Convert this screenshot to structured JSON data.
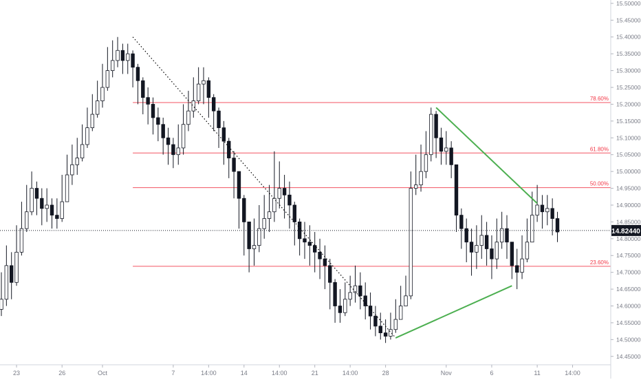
{
  "symbol_price_label": "14.82440",
  "chart_data": {
    "type": "candlestick",
    "ylim": [
      14.425,
      15.51
    ],
    "y_tick_labels": [
      "15.50000",
      "15.45000",
      "15.40000",
      "15.35000",
      "15.30000",
      "15.25000",
      "15.20000",
      "15.15000",
      "15.10000",
      "15.05000",
      "15.00000",
      "14.95000",
      "14.90000",
      "14.85000",
      "14.80000",
      "14.75000",
      "14.70000",
      "14.65000",
      "14.60000",
      "14.55000",
      "14.50000",
      "14.45000"
    ],
    "y_ticks": [
      15.5,
      15.45,
      15.4,
      15.35,
      15.3,
      15.25,
      15.2,
      15.15,
      15.1,
      15.05,
      15.0,
      14.95,
      14.9,
      14.85,
      14.8,
      14.75,
      14.7,
      14.65,
      14.6,
      14.55,
      14.5,
      14.45
    ],
    "x_tick_labels": [
      {
        "label": "23",
        "bar": 3
      },
      {
        "label": "26",
        "bar": 12
      },
      {
        "label": "Oct",
        "bar": 20
      },
      {
        "label": "7",
        "bar": 34
      },
      {
        "label": "14:00",
        "bar": 41
      },
      {
        "label": "14",
        "bar": 48
      },
      {
        "label": "14:00",
        "bar": 55
      },
      {
        "label": "21",
        "bar": 62
      },
      {
        "label": "14:00",
        "bar": 69
      },
      {
        "label": "28",
        "bar": 76
      },
      {
        "label": "Nov",
        "bar": 88
      },
      {
        "label": "6",
        "bar": 97
      },
      {
        "label": "11",
        "bar": 106
      },
      {
        "label": "14:00",
        "bar": 113
      }
    ],
    "last_price": 14.8244,
    "fib_levels": [
      {
        "label": "78.60%",
        "value": 15.205,
        "bar_start": 26
      },
      {
        "label": "61.80%",
        "value": 15.055,
        "bar_start": 26
      },
      {
        "label": "50.00%",
        "value": 14.952,
        "bar_start": 26
      },
      {
        "label": "23.60%",
        "value": 14.718,
        "bar_start": 26
      }
    ],
    "trendlines": [
      {
        "style": "dotted",
        "color": "#000000",
        "from": {
          "bar": 26,
          "price": 15.4
        },
        "to": {
          "bar": 78,
          "price": 14.505
        }
      },
      {
        "style": "solid",
        "color": "#4caf50",
        "from": {
          "bar": 86,
          "price": 15.19
        },
        "to": {
          "bar": 106,
          "price": 14.905
        }
      },
      {
        "style": "solid",
        "color": "#4caf50",
        "from": {
          "bar": 78,
          "price": 14.505
        },
        "to": {
          "bar": 101,
          "price": 14.66
        }
      }
    ],
    "closes": [
      14.62,
      14.72,
      14.67,
      14.76,
      14.83,
      14.88,
      14.95,
      14.92,
      14.89,
      14.9,
      14.87,
      14.86,
      14.91,
      14.99,
      15.02,
      15.04,
      15.08,
      15.13,
      15.17,
      15.21,
      15.25,
      15.3,
      15.33,
      15.36,
      15.33,
      15.35,
      15.31,
      15.27,
      15.22,
      15.2,
      15.16,
      15.14,
      15.1,
      15.08,
      15.05,
      15.07,
      15.14,
      15.18,
      15.21,
      15.26,
      15.27,
      15.22,
      15.18,
      15.13,
      15.09,
      15.04,
      15.0,
      14.92,
      14.85,
      14.77,
      14.78,
      14.83,
      14.86,
      14.88,
      14.92,
      14.95,
      14.93,
      14.9,
      14.85,
      14.8,
      14.79,
      14.78,
      14.76,
      14.74,
      14.72,
      14.67,
      14.6,
      14.58,
      14.62,
      14.64,
      14.66,
      14.63,
      14.6,
      14.57,
      14.54,
      14.52,
      14.51,
      14.53,
      14.56,
      14.6,
      14.63,
      14.95,
      14.96,
      15.0,
      15.05,
      15.17,
      15.1,
      15.06,
      15.07,
      15.02,
      14.87,
      14.83,
      14.79,
      14.76,
      14.78,
      14.81,
      14.77,
      14.74,
      14.79,
      14.83,
      14.79,
      14.72,
      14.7,
      14.74,
      14.79,
      14.87,
      14.9,
      14.88,
      14.89,
      14.86,
      14.82
    ],
    "highs": [
      14.7,
      14.78,
      14.76,
      14.84,
      14.91,
      14.96,
      15.0,
      14.97,
      14.95,
      14.95,
      14.92,
      14.92,
      14.99,
      15.05,
      15.08,
      15.1,
      15.14,
      15.19,
      15.23,
      15.27,
      15.32,
      15.37,
      15.39,
      15.4,
      15.38,
      15.38,
      15.36,
      15.32,
      15.28,
      15.25,
      15.22,
      15.19,
      15.16,
      15.13,
      15.1,
      15.14,
      15.2,
      15.24,
      15.28,
      15.31,
      15.31,
      15.28,
      15.23,
      15.19,
      15.15,
      15.1,
      15.06,
      15.0,
      14.93,
      14.85,
      14.86,
      14.9,
      14.93,
      14.96,
      15.06,
      15.03,
      14.99,
      14.97,
      14.91,
      14.86,
      14.85,
      14.84,
      14.82,
      14.8,
      14.78,
      14.74,
      14.68,
      14.65,
      14.67,
      14.69,
      14.72,
      14.7,
      14.67,
      14.64,
      14.6,
      14.58,
      14.56,
      14.58,
      14.62,
      14.66,
      14.69,
      15.0,
      15.05,
      15.08,
      15.12,
      15.19,
      15.18,
      15.13,
      15.12,
      15.09,
      14.92,
      14.89,
      14.86,
      14.83,
      14.84,
      14.87,
      14.85,
      14.81,
      14.86,
      14.88,
      14.87,
      14.78,
      14.77,
      14.81,
      14.86,
      14.94,
      14.96,
      14.93,
      14.93,
      14.92,
      14.88
    ],
    "lows": [
      14.57,
      14.6,
      14.62,
      14.66,
      14.75,
      14.82,
      14.87,
      14.87,
      14.84,
      14.85,
      14.83,
      14.83,
      14.85,
      14.91,
      14.96,
      14.99,
      15.03,
      15.07,
      15.12,
      15.16,
      15.19,
      15.24,
      15.28,
      15.31,
      15.29,
      15.29,
      15.25,
      15.2,
      15.17,
      15.14,
      15.11,
      15.09,
      15.05,
      15.02,
      15.01,
      15.02,
      15.05,
      15.12,
      15.16,
      15.2,
      15.2,
      15.16,
      15.12,
      15.07,
      15.02,
      14.98,
      14.92,
      14.83,
      14.75,
      14.7,
      14.72,
      14.76,
      14.8,
      14.82,
      14.85,
      14.89,
      14.86,
      14.83,
      14.78,
      14.75,
      14.74,
      14.72,
      14.7,
      14.68,
      14.65,
      14.59,
      14.55,
      14.55,
      14.57,
      14.6,
      14.61,
      14.59,
      14.56,
      14.53,
      14.51,
      14.5,
      14.49,
      14.5,
      14.52,
      14.56,
      14.6,
      14.62,
      14.93,
      14.94,
      14.98,
      15.03,
      15.04,
      15.02,
      15.02,
      14.98,
      14.82,
      14.77,
      14.73,
      14.69,
      14.71,
      14.74,
      14.72,
      14.68,
      14.71,
      14.77,
      14.74,
      14.68,
      14.65,
      14.68,
      14.73,
      14.8,
      14.85,
      14.83,
      14.84,
      14.81,
      14.79
    ]
  }
}
